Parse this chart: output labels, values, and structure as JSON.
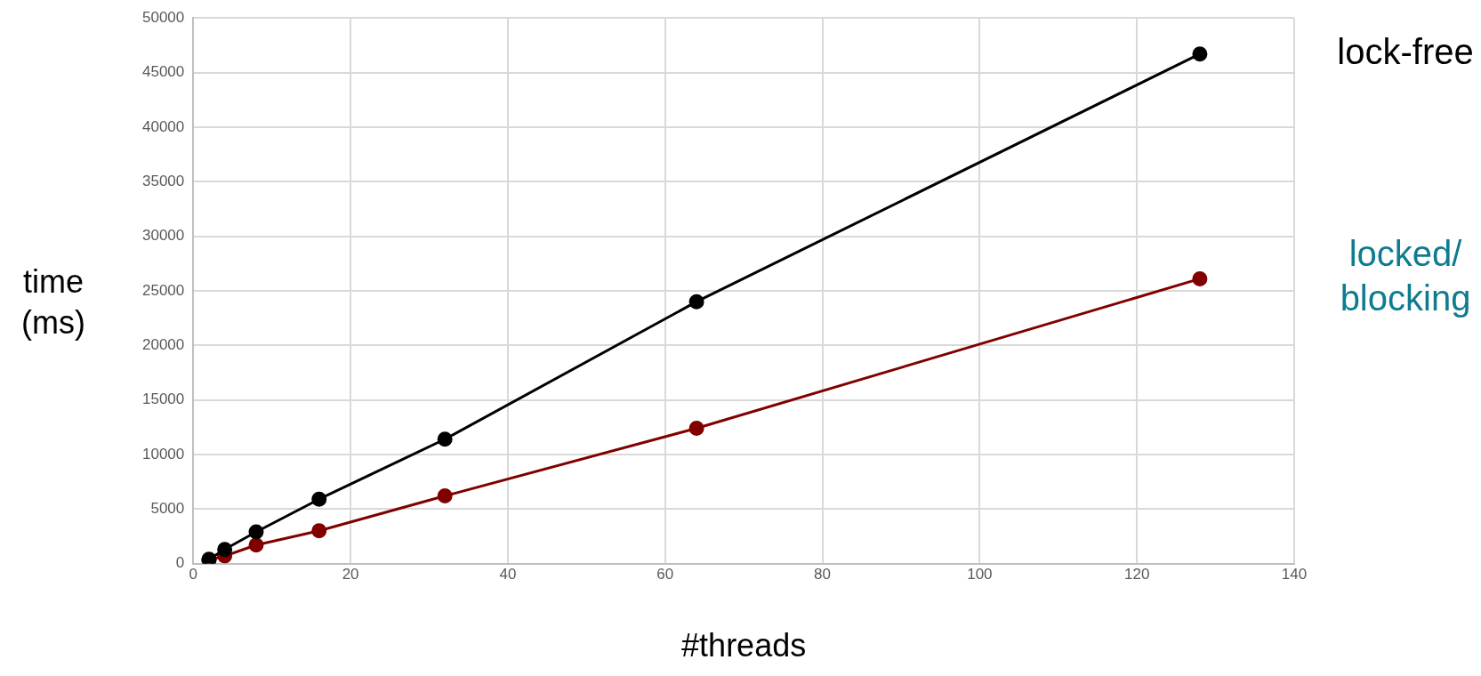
{
  "chart_data": {
    "type": "line",
    "xlabel": "#threads",
    "ylabel": "time (ms)",
    "series": [
      {
        "name": "lock-free",
        "color": "#000000",
        "x": [
          2,
          4,
          8,
          16,
          32,
          64,
          128
        ],
        "values": [
          400,
          1300,
          2900,
          5900,
          11400,
          24000,
          46700
        ]
      },
      {
        "name": "locked/blocking",
        "color": "#800000",
        "x": [
          2,
          4,
          8,
          16,
          32,
          64,
          128
        ],
        "values": [
          300,
          700,
          1700,
          3000,
          6200,
          12400,
          26100
        ]
      }
    ],
    "xlim": [
      0,
      140
    ],
    "xticks": [
      0,
      20,
      40,
      60,
      80,
      100,
      120,
      140
    ],
    "ylim": [
      0,
      50000
    ],
    "yticks": [
      0,
      5000,
      10000,
      15000,
      20000,
      25000,
      30000,
      35000,
      40000,
      45000,
      50000
    ],
    "grid": true,
    "marker": "circle",
    "line_style": "solid",
    "legend": false
  }
}
